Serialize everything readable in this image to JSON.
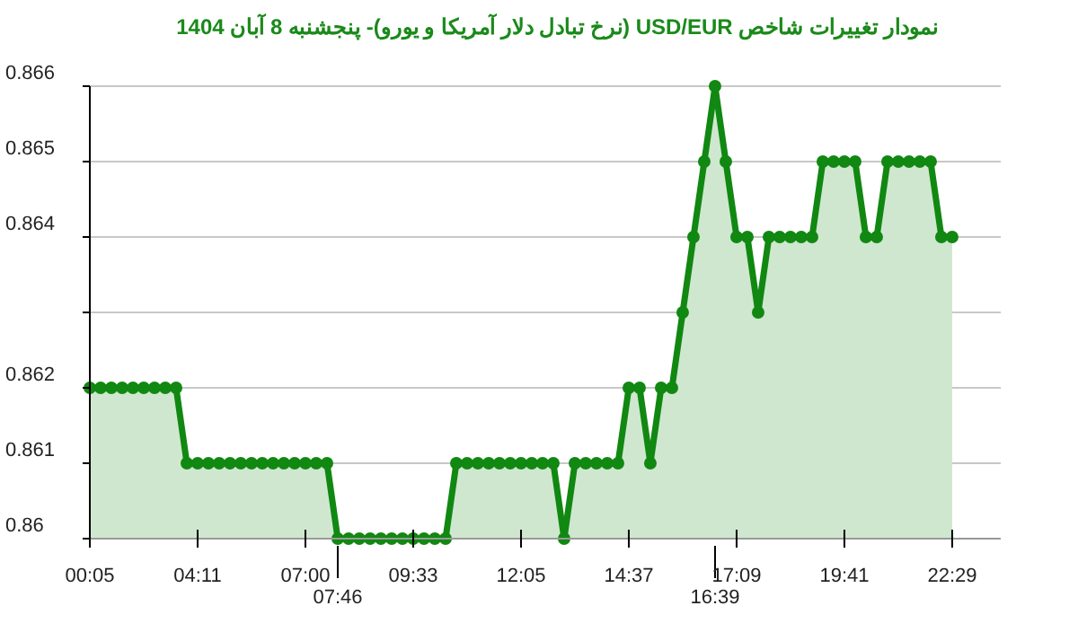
{
  "chart_data": {
    "type": "area",
    "title": "نمودار تغییرات شاخص USD/EUR (نرخ تبادل دلار آمریکا و یورو)- پنجشنبه  8 آبان 1404",
    "categories": [
      "00:05",
      null,
      null,
      null,
      null,
      null,
      null,
      null,
      null,
      null,
      "04:11",
      null,
      null,
      null,
      null,
      null,
      null,
      null,
      null,
      null,
      "07:00",
      null,
      null,
      "07:46",
      null,
      null,
      null,
      null,
      null,
      null,
      "09:33",
      null,
      null,
      null,
      null,
      null,
      null,
      null,
      null,
      null,
      "12:05",
      null,
      null,
      null,
      null,
      null,
      null,
      null,
      null,
      null,
      "14:37",
      null,
      null,
      null,
      null,
      null,
      null,
      null,
      "16:39",
      null,
      "17:09",
      null,
      null,
      null,
      null,
      null,
      null,
      null,
      null,
      null,
      "19:41",
      null,
      null,
      null,
      null,
      null,
      null,
      null,
      null,
      null,
      "22:29"
    ],
    "series": [
      {
        "color": "#118811",
        "values": [
          0.862,
          0.862,
          0.862,
          0.862,
          0.862,
          0.862,
          0.862,
          0.862,
          0.862,
          0.861,
          0.861,
          0.861,
          0.861,
          0.861,
          0.861,
          0.861,
          0.861,
          0.861,
          0.861,
          0.861,
          0.861,
          0.861,
          0.861,
          0.86,
          0.86,
          0.86,
          0.86,
          0.86,
          0.86,
          0.86,
          0.86,
          0.86,
          0.86,
          0.86,
          0.861,
          0.861,
          0.861,
          0.861,
          0.861,
          0.861,
          0.861,
          0.861,
          0.861,
          0.861,
          0.86,
          0.861,
          0.861,
          0.861,
          0.861,
          0.861,
          0.862,
          0.862,
          0.861,
          0.862,
          0.862,
          0.863,
          0.864,
          0.865,
          0.866,
          0.865,
          0.864,
          0.864,
          0.863,
          0.864,
          0.864,
          0.864,
          0.864,
          0.864,
          0.865,
          0.865,
          0.865,
          0.865,
          0.864,
          0.864,
          0.865,
          0.865,
          0.865,
          0.865,
          0.865,
          0.864,
          0.864
        ]
      }
    ],
    "ylim": [
      0.86,
      0.866
    ],
    "yticks": [
      0.86,
      0.861,
      0.862,
      {
        "value": 0.863,
        "label": null
      },
      0.864,
      0.865,
      0.866
    ],
    "grid": "y",
    "marker": "circle"
  }
}
